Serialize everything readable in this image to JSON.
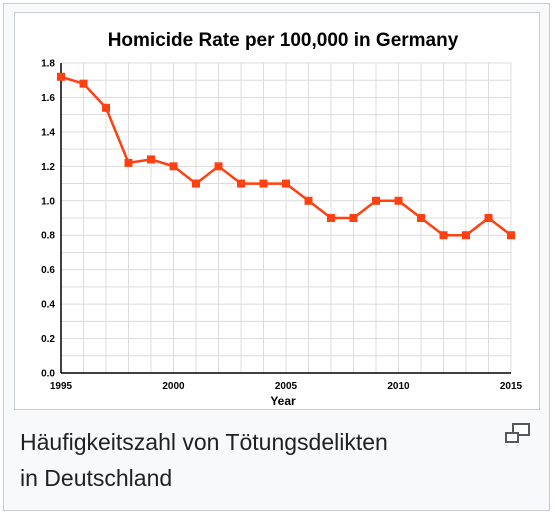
{
  "caption": {
    "text_line1": "Häufigkeitszahl von Tötungsdelikten",
    "text_line2": "in Deutschland"
  },
  "icons": {
    "magnify": "magnify-clip-icon"
  },
  "colors": {
    "series": "#ff4010",
    "grid": "#dcdcdc",
    "border": "#c8ccd1",
    "caption_bg": "#f8f9fa"
  },
  "chart_data": {
    "type": "line",
    "title": "Homicide Rate per 100,000 in Germany",
    "xlabel": "Year",
    "ylabel": "",
    "xlim": [
      1995,
      2015
    ],
    "ylim": [
      0,
      1.8
    ],
    "xticks": [
      1995,
      2000,
      2005,
      2010,
      2015
    ],
    "xtick_labels": [
      "1995",
      "2000",
      "2005",
      "2010",
      "2015"
    ],
    "yticks": [
      0,
      0.2,
      0.4,
      0.6,
      0.8,
      1.0,
      1.2,
      1.4,
      1.6,
      1.8
    ],
    "ytick_labels": [
      "0.0",
      "0.2",
      "0.4",
      "0.6",
      "0.8",
      "1.0",
      "1.2",
      "1.4",
      "1.6",
      "1.8"
    ],
    "grid": true,
    "marker": "square",
    "series": [
      {
        "x": [
          1995,
          1996,
          1997,
          1998,
          1999,
          2000,
          2001,
          2002,
          2003,
          2004,
          2005,
          2006,
          2007,
          2008,
          2009,
          2010,
          2011,
          2012,
          2013,
          2014,
          2015
        ],
        "values": [
          1.72,
          1.68,
          1.54,
          1.22,
          1.24,
          1.2,
          1.1,
          1.2,
          1.1,
          1.1,
          1.1,
          1.0,
          0.9,
          0.9,
          1.0,
          1.0,
          0.9,
          0.8,
          0.8,
          0.9,
          0.8
        ]
      }
    ]
  }
}
